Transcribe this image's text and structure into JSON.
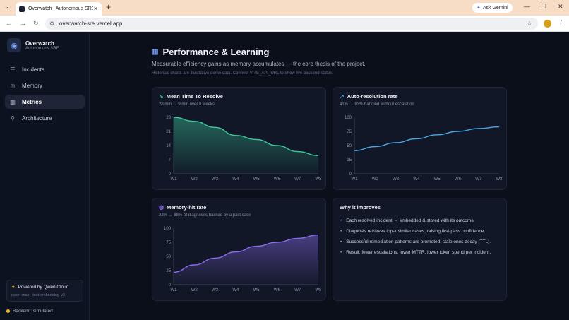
{
  "browser": {
    "tab_title": "Overwatch | Autonomous SRE",
    "url": "overwatch-sre.vercel.app",
    "gemini_label": "Ask Gemini"
  },
  "sidebar": {
    "brand": "Overwatch",
    "brand_sub": "Autonomous SRE",
    "items": [
      {
        "label": "Incidents",
        "icon": "list-icon"
      },
      {
        "label": "Memory",
        "icon": "memory-icon"
      },
      {
        "label": "Metrics",
        "icon": "bar-chart-icon",
        "active": true
      },
      {
        "label": "Architecture",
        "icon": "architecture-icon"
      }
    ],
    "powered_title": "Powered by Qwen Cloud",
    "powered_sub": "qwen-max · text-embedding-v3",
    "backend_status": "Backend: simulated"
  },
  "page": {
    "title": "Performance & Learning",
    "subtitle": "Measurable efficiency gains as memory accumulates — the core thesis of the project.",
    "note": "Historical charts are illustrative demo data. Connect VITE_API_URL to show live backend status."
  },
  "colors": {
    "mttr": "#3cc79a",
    "auto": "#4aa8e6",
    "memhit": "#8b6cf0",
    "accent": "#7ea6ff"
  },
  "chart_data": [
    {
      "type": "area",
      "title": "Mean Time To Resolve",
      "subtitle": "28 min → 9 min over 8 weeks",
      "categories": [
        "W1",
        "W2",
        "W3",
        "W4",
        "W5",
        "W6",
        "W7",
        "W8"
      ],
      "values": [
        28,
        26,
        23,
        19,
        17,
        14,
        11,
        9
      ],
      "yticks": [
        0,
        7,
        14,
        21,
        28
      ],
      "ylim": [
        0,
        28
      ],
      "color": "#3cc79a"
    },
    {
      "type": "line",
      "title": "Auto-resolution rate",
      "subtitle": "41% → 83% handled without escalation",
      "categories": [
        "W1",
        "W2",
        "W3",
        "W4",
        "W5",
        "W6",
        "W7",
        "W8"
      ],
      "values": [
        41,
        48,
        55,
        62,
        69,
        75,
        80,
        83
      ],
      "yticks": [
        0,
        25,
        50,
        75,
        100
      ],
      "ylim": [
        0,
        100
      ],
      "color": "#4aa8e6"
    },
    {
      "type": "area",
      "title": "Memory-hit rate",
      "subtitle": "22% → 88% of diagnoses backed by a past case",
      "categories": [
        "W1",
        "W2",
        "W3",
        "W4",
        "W5",
        "W6",
        "W7",
        "W8"
      ],
      "values": [
        22,
        35,
        47,
        58,
        68,
        75,
        82,
        88
      ],
      "yticks": [
        0,
        25,
        50,
        75,
        100
      ],
      "ylim": [
        0,
        100
      ],
      "color": "#8b6cf0"
    }
  ],
  "why": {
    "title": "Why it improves",
    "items": [
      "Each resolved incident → embedded & stored with its outcome.",
      "Diagnosis retrieves top-k similar cases, raising first-pass confidence.",
      "Successful remediation patterns are promoted; stale ones decay (TTL).",
      "Result: fewer escalations, lower MTTR, lower token spend per incident."
    ]
  }
}
